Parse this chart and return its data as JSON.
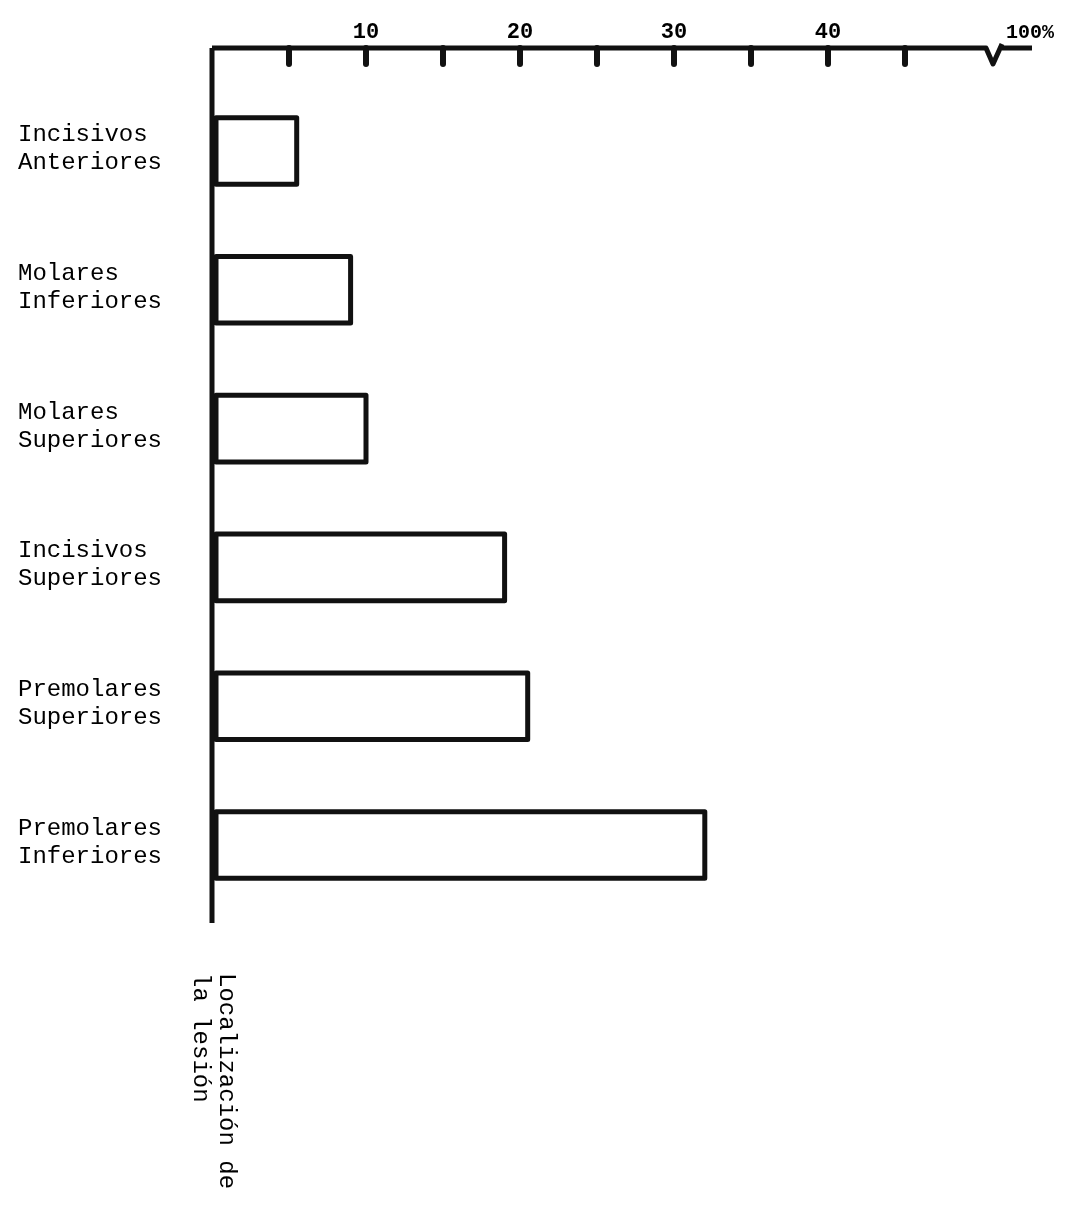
{
  "chart_data": {
    "type": "bar",
    "orientation": "horizontal",
    "ylabel": "Localización de la lesión",
    "categories": [
      "Incisivos Anteriores",
      "Molares Inferiores",
      "Molares Superiores",
      "Incisivos Superiores",
      "Premolares Superiores",
      "Premolares Inferiores"
    ],
    "values": [
      5.5,
      9,
      10,
      19,
      20.5,
      32
    ],
    "color": "#ffffff",
    "xlim": [
      0,
      50
    ],
    "xticks": [
      {
        "value": 5,
        "label": null
      },
      10,
      {
        "value": 15,
        "label": null
      },
      20,
      {
        "value": 25,
        "label": null
      },
      30,
      {
        "value": 35,
        "label": null
      },
      40,
      {
        "value": 45,
        "label": null
      }
    ],
    "annotations": [
      "100%"
    ],
    "grid": false
  }
}
